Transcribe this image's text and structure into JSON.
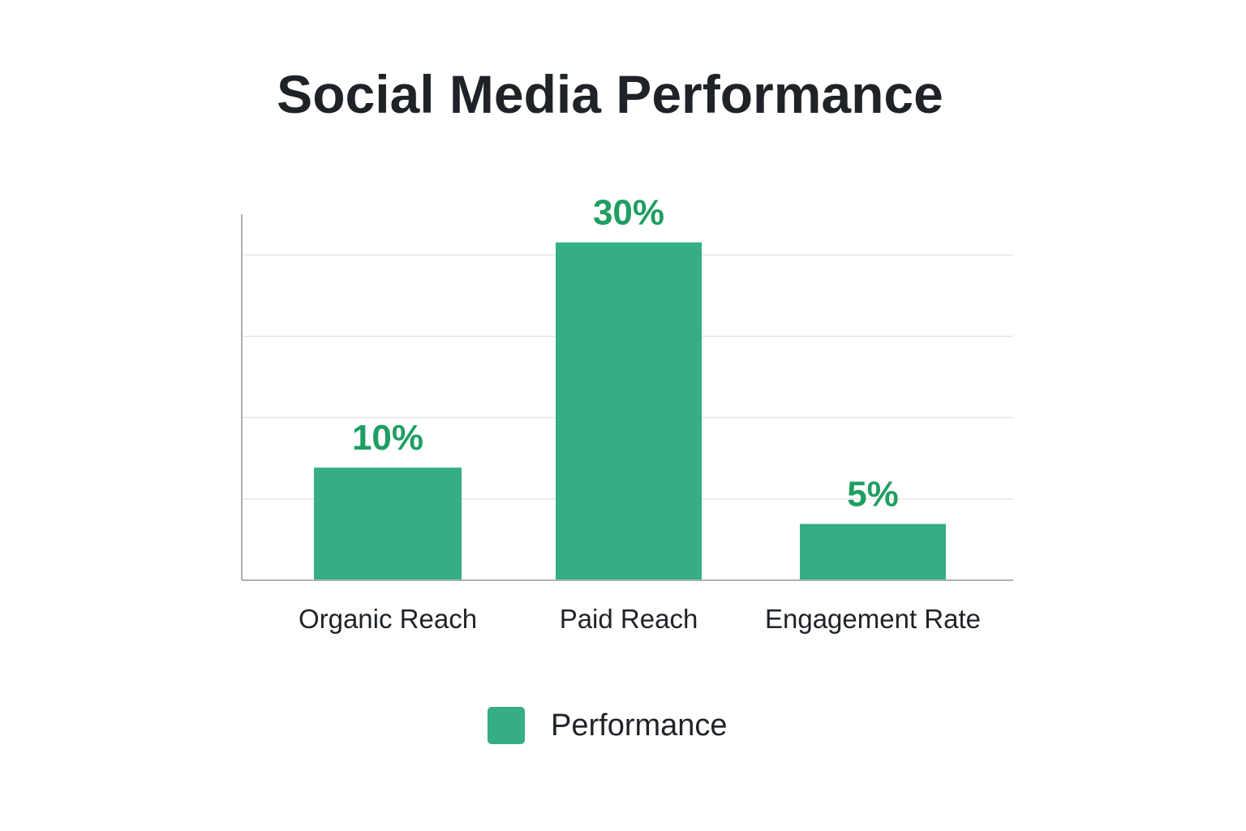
{
  "chart_data": {
    "type": "bar",
    "title": "Social Media Performance",
    "xlabel": "",
    "ylabel": "",
    "categories": [
      "Organic Reach",
      "Paid Reach",
      "Engagement Rate"
    ],
    "series": [
      {
        "name": "Performance",
        "values": [
          10,
          30,
          5
        ],
        "value_labels": [
          "10%",
          "30%",
          "5%"
        ]
      }
    ],
    "ylim": [
      0,
      32.5
    ],
    "grid": true,
    "legend_position": "bottom-center"
  },
  "colors": {
    "bar": "#35ad87",
    "value_label": "#1f9e62",
    "axis": "#b0b0b0",
    "grid": "#e6e6e6",
    "text": "#1f2328"
  }
}
